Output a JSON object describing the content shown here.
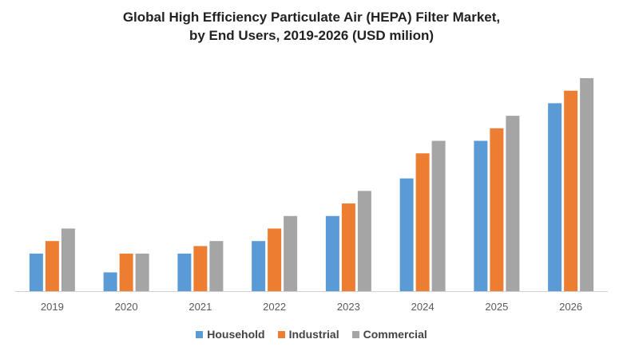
{
  "title_line1": "Global High Efficiency Particulate Air (HEPA) Filter Market,",
  "title_line2": "by End Users, 2019-2026 (USD milion)",
  "colors": {
    "household": "#5b9bd5",
    "industrial": "#ed7d31",
    "commercial": "#a5a5a5",
    "axis": "#d0d0d0",
    "tick_text": "#595959"
  },
  "chart_data": {
    "type": "bar",
    "title": "Global High Efficiency Particulate Air (HEPA) Filter Market, by End Users, 2019-2026 (USD milion)",
    "xlabel": "",
    "ylabel": "",
    "categories": [
      "2019",
      "2020",
      "2021",
      "2022",
      "2023",
      "2024",
      "2025",
      "2026"
    ],
    "ylim": [
      0,
      17
    ],
    "grid": false,
    "legend_position": "bottom",
    "series": [
      {
        "name": "Household",
        "values": [
          3,
          1.5,
          3,
          4,
          6,
          9,
          12,
          15
        ]
      },
      {
        "name": "Industrial",
        "values": [
          4,
          3,
          3.6,
          5,
          7,
          11,
          13,
          16
        ]
      },
      {
        "name": "Commercial",
        "values": [
          5,
          3,
          4,
          6,
          8,
          12,
          14,
          17
        ]
      }
    ]
  }
}
